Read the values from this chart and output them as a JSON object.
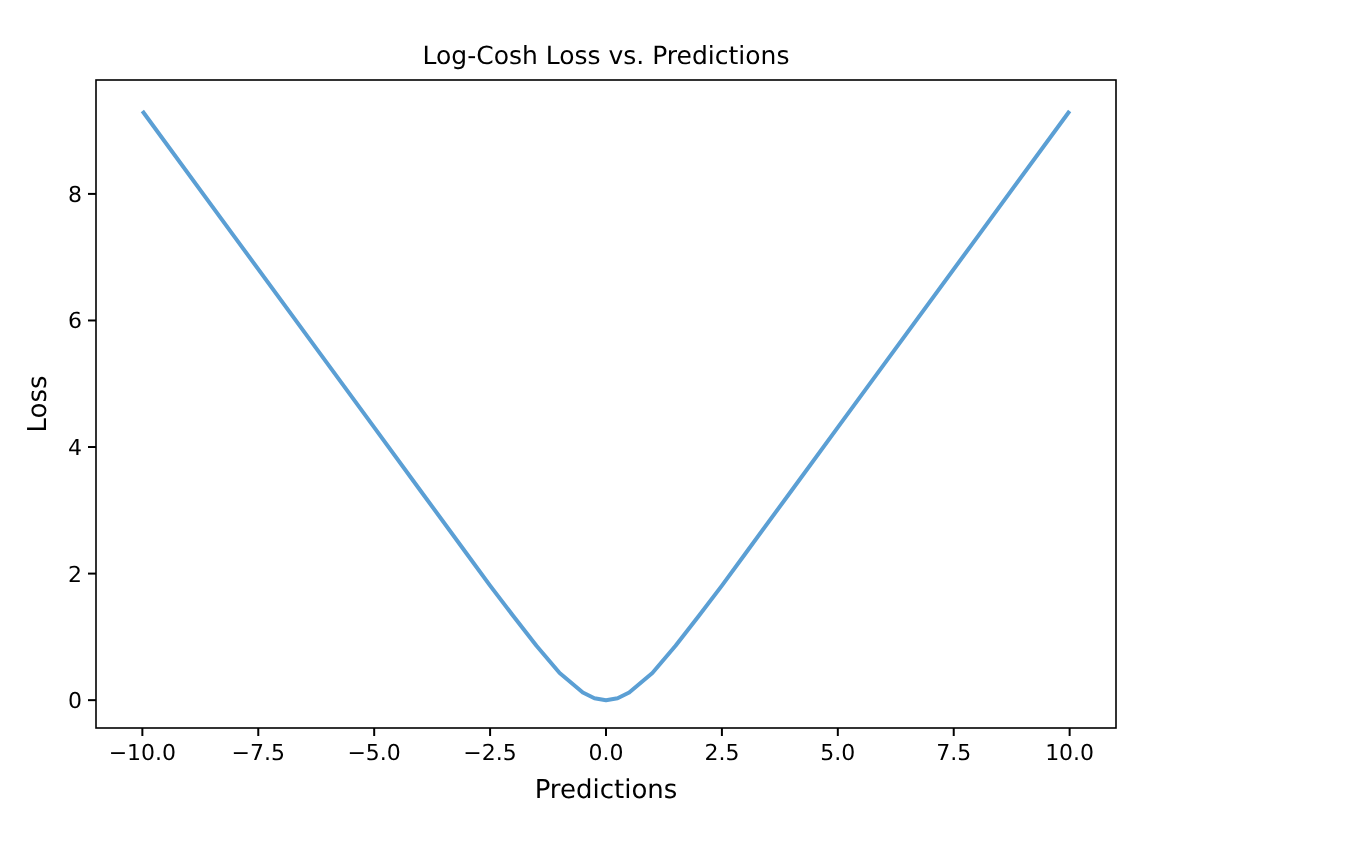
{
  "chart_data": {
    "type": "line",
    "title": "Log-Cosh Loss vs. Predictions",
    "xlabel": "Predictions",
    "ylabel": "Loss",
    "x": [
      -10,
      -8,
      -6,
      -5,
      -4,
      -3,
      -2.5,
      -2,
      -1.5,
      -1,
      -0.5,
      -0.25,
      0,
      0.25,
      0.5,
      1,
      1.5,
      2,
      2.5,
      3,
      4,
      5,
      6,
      8,
      10
    ],
    "series": [
      {
        "color": "#5b9fd4",
        "values": [
          9.31,
          7.31,
          5.31,
          4.31,
          3.31,
          2.31,
          1.81,
          1.33,
          0.86,
          0.43,
          0.12,
          0.03,
          0,
          0.03,
          0.12,
          0.43,
          0.86,
          1.33,
          1.81,
          2.31,
          3.31,
          4.31,
          5.31,
          7.31,
          9.31
        ]
      }
    ],
    "xlim": [
      -11,
      11
    ],
    "ylim": [
      -0.44,
      9.8
    ],
    "xticks": [
      {
        "value": -10,
        "label": "−10.0"
      },
      {
        "value": -7.5,
        "label": "−7.5"
      },
      {
        "value": -5,
        "label": "−5.0"
      },
      {
        "value": -2.5,
        "label": "−2.5"
      },
      {
        "value": 0,
        "label": "0.0"
      },
      {
        "value": 2.5,
        "label": "2.5"
      },
      {
        "value": 5,
        "label": "5.0"
      },
      {
        "value": 7.5,
        "label": "7.5"
      },
      {
        "value": 10,
        "label": "10.0"
      }
    ],
    "yticks": [
      0,
      2,
      4,
      6,
      8
    ],
    "grid": false
  }
}
